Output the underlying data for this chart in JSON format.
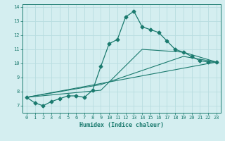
{
  "xlabel": "Humidex (Indice chaleur)",
  "bg_color": "#d4eef0",
  "grid_color": "#b8dde0",
  "line_color": "#1a7a6e",
  "xlim": [
    -0.5,
    23.5
  ],
  "ylim": [
    6.5,
    14.2
  ],
  "yticks": [
    7,
    8,
    9,
    10,
    11,
    12,
    13,
    14
  ],
  "xticks": [
    0,
    1,
    2,
    3,
    4,
    5,
    6,
    7,
    8,
    9,
    10,
    11,
    12,
    13,
    14,
    15,
    16,
    17,
    18,
    19,
    20,
    21,
    22,
    23
  ],
  "series_main": {
    "x": [
      0,
      1,
      2,
      3,
      4,
      5,
      6,
      7,
      8,
      9,
      10,
      11,
      12,
      13,
      14,
      15,
      16,
      17,
      18,
      19,
      20,
      21,
      22,
      23
    ],
    "y": [
      7.6,
      7.2,
      7.0,
      7.3,
      7.5,
      7.7,
      7.7,
      7.6,
      8.1,
      9.8,
      11.4,
      11.7,
      13.3,
      13.7,
      12.6,
      12.4,
      12.2,
      11.6,
      11.0,
      10.8,
      10.5,
      10.2,
      10.1,
      10.1
    ]
  },
  "series_lines": [
    {
      "x": [
        0,
        23
      ],
      "y": [
        7.6,
        10.1
      ]
    },
    {
      "x": [
        0,
        9,
        19,
        23
      ],
      "y": [
        7.6,
        8.5,
        10.5,
        10.1
      ]
    },
    {
      "x": [
        0,
        9,
        14,
        19,
        23
      ],
      "y": [
        7.6,
        8.1,
        11.0,
        10.8,
        10.1
      ]
    }
  ]
}
